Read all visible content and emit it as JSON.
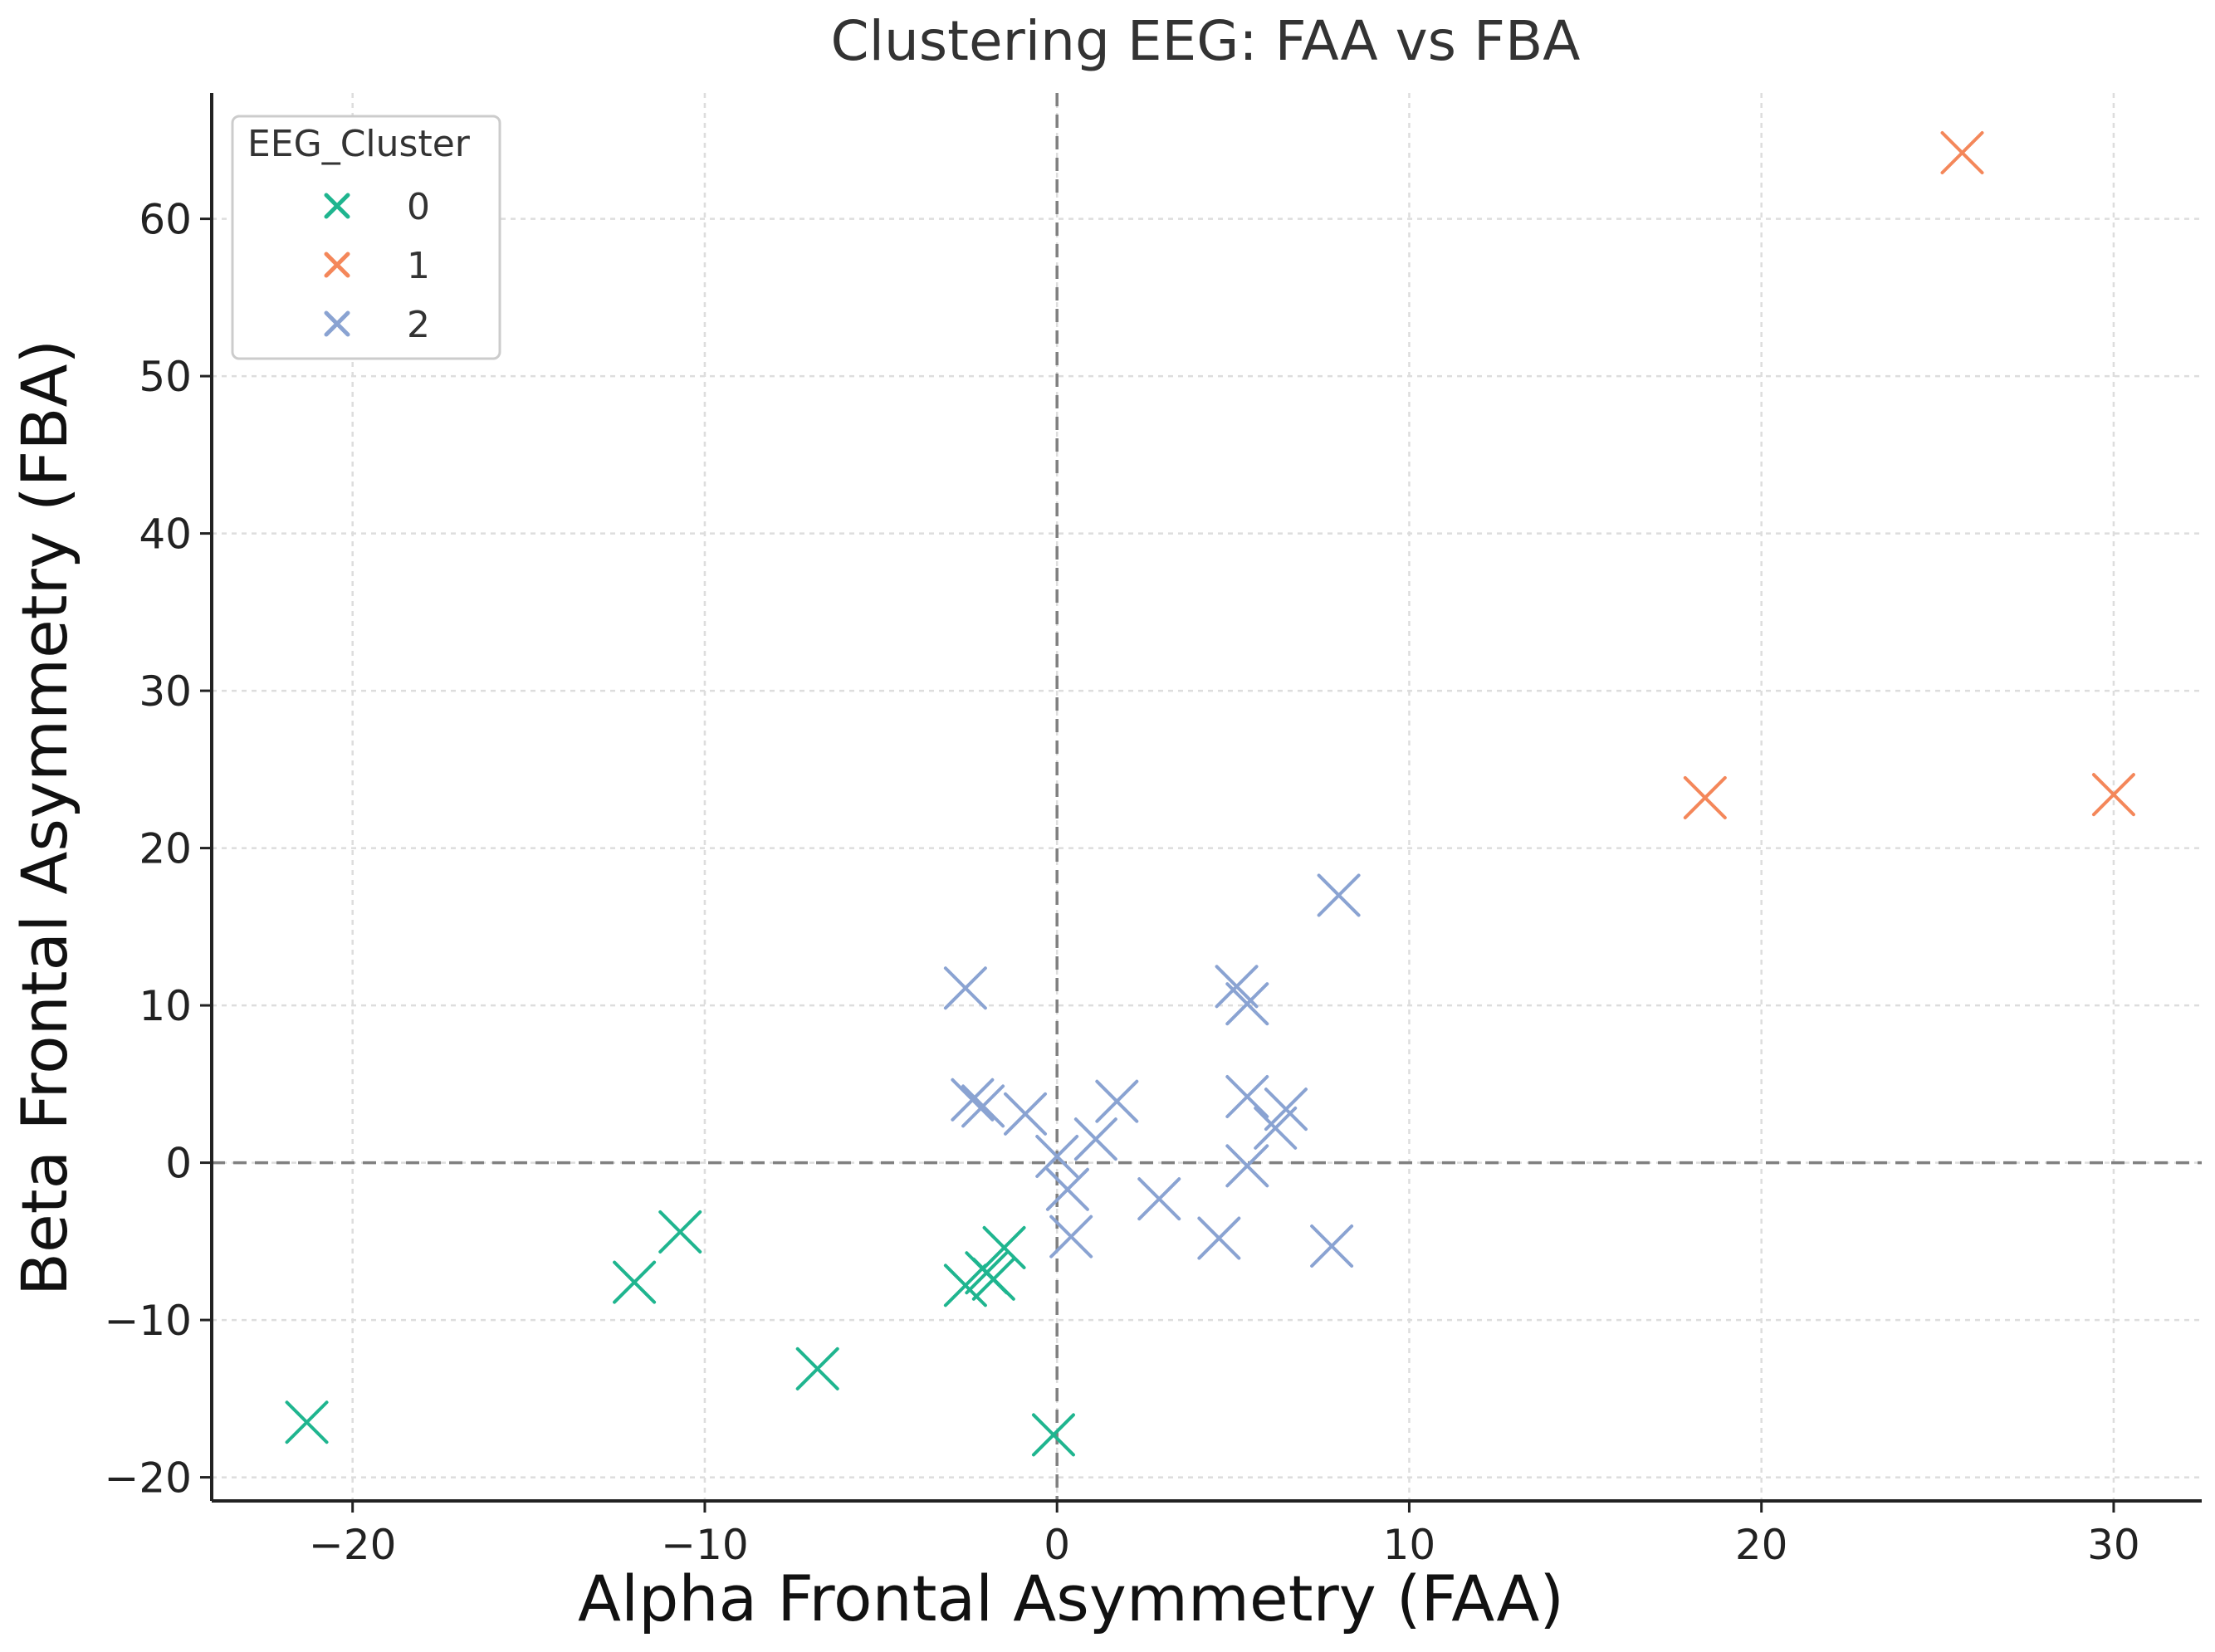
{
  "chart_data": {
    "type": "scatter",
    "title": "Clustering EEG: FAA vs FBA",
    "xlabel": "Alpha Frontal Asymmetry  (FAA)",
    "ylabel": "Beta Frontal Asymmetry (FBA)",
    "xlim": [
      -24,
      32.5
    ],
    "ylim": [
      -21.5,
      68
    ],
    "xticks": [
      -20,
      -10,
      0,
      10,
      20,
      30
    ],
    "yticks": [
      -20,
      -10,
      0,
      10,
      20,
      30,
      40,
      50,
      60
    ],
    "xtick_labels": [
      "−20",
      "−10",
      "0",
      "10",
      "20",
      "30"
    ],
    "ytick_labels": [
      "−20",
      "−10",
      "0",
      "10",
      "20",
      "30",
      "40",
      "50",
      "60"
    ],
    "grid": true,
    "reference_lines": {
      "x": 0,
      "y": 0,
      "style": "dashed"
    },
    "marker": "x",
    "legend": {
      "title": "EEG_Cluster",
      "placement": "top-left"
    },
    "series": [
      {
        "name": "0",
        "color": "#1fb58f",
        "points": [
          [
            -21.3,
            -16.5
          ],
          [
            -12.0,
            -7.6
          ],
          [
            -10.7,
            -4.4
          ],
          [
            -6.8,
            -13.1
          ],
          [
            -2.6,
            -7.8
          ],
          [
            -2.0,
            -7.0
          ],
          [
            -1.8,
            -7.4
          ],
          [
            -1.5,
            -5.4
          ],
          [
            -0.1,
            -17.3
          ]
        ]
      },
      {
        "name": "1",
        "color": "#f4875a",
        "points": [
          [
            18.4,
            23.2
          ],
          [
            25.7,
            64.2
          ],
          [
            30.0,
            23.4
          ]
        ]
      },
      {
        "name": "2",
        "color": "#8aa3d2",
        "points": [
          [
            -2.6,
            11.1
          ],
          [
            -2.4,
            4.0
          ],
          [
            -2.1,
            3.6
          ],
          [
            -0.9,
            3.1
          ],
          [
            0.0,
            0.4
          ],
          [
            0.3,
            -1.7
          ],
          [
            0.4,
            -4.7
          ],
          [
            1.1,
            1.5
          ],
          [
            1.7,
            3.9
          ],
          [
            2.9,
            -2.3
          ],
          [
            4.6,
            -4.8
          ],
          [
            5.1,
            11.2
          ],
          [
            5.4,
            10.1
          ],
          [
            5.4,
            4.2
          ],
          [
            5.4,
            -0.2
          ],
          [
            6.2,
            2.2
          ],
          [
            6.5,
            3.4
          ],
          [
            7.8,
            -5.3
          ],
          [
            8.0,
            17.0
          ]
        ]
      }
    ]
  }
}
